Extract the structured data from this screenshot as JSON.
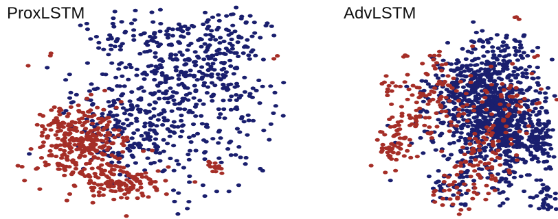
{
  "chart_data": [
    {
      "type": "scatter",
      "title": "ProxLSTM",
      "xlabel": "",
      "ylabel": "",
      "grid": false,
      "axes_visible": false,
      "xlim": [
        0,
        100
      ],
      "ylim": [
        0,
        100
      ],
      "series": [
        {
          "color": "#1a1f6e",
          "clusters": [
            {
              "cx": 58,
              "cy": 58,
              "sx": 18,
              "sy": 22,
              "n": 420
            },
            {
              "cx": 72,
              "cy": 72,
              "sx": 12,
              "sy": 14,
              "n": 160
            },
            {
              "cx": 40,
              "cy": 40,
              "sx": 10,
              "sy": 10,
              "n": 100
            },
            {
              "cx": 37,
              "cy": 82,
              "sx": 4,
              "sy": 3,
              "n": 12
            },
            {
              "cx": 50,
              "cy": 86,
              "sx": 4,
              "sy": 3,
              "n": 14
            },
            {
              "cx": 68,
              "cy": 88,
              "sx": 6,
              "sy": 3,
              "n": 16
            },
            {
              "cx": 82,
              "cy": 87,
              "sx": 4,
              "sy": 4,
              "n": 14
            }
          ]
        },
        {
          "color": "#a52e27",
          "clusters": [
            {
              "cx": 25,
              "cy": 35,
              "sx": 8,
              "sy": 9,
              "n": 300
            },
            {
              "cx": 40,
              "cy": 17,
              "sx": 8,
              "sy": 4,
              "n": 110
            },
            {
              "cx": 74,
              "cy": 24,
              "sx": 2,
              "sy": 1.5,
              "n": 14
            },
            {
              "cx": 16,
              "cy": 45,
              "sx": 2,
              "sy": 4,
              "n": 12
            },
            {
              "cx": 97,
              "cy": 76,
              "sx": 0.5,
              "sy": 0.5,
              "n": 2
            },
            {
              "cx": 15,
              "cy": 78,
              "sx": 1,
              "sy": 1,
              "n": 2
            },
            {
              "cx": 6,
              "cy": 72,
              "sx": 0.5,
              "sy": 0.5,
              "n": 1
            },
            {
              "cx": 41,
              "cy": 1,
              "sx": 0.5,
              "sy": 0.5,
              "n": 1
            }
          ]
        }
      ]
    },
    {
      "type": "scatter",
      "title": "AdvLSTM",
      "xlabel": "",
      "ylabel": "",
      "grid": false,
      "axes_visible": false,
      "xlim": [
        0,
        100
      ],
      "ylim": [
        0,
        100
      ],
      "series": [
        {
          "color": "#1a1f6e",
          "clusters": [
            {
              "cx": 62,
              "cy": 50,
              "sx": 16,
              "sy": 14,
              "n": 620
            },
            {
              "cx": 52,
              "cy": 62,
              "sx": 10,
              "sy": 8,
              "n": 180
            },
            {
              "cx": 75,
              "cy": 42,
              "sx": 10,
              "sy": 8,
              "n": 160
            },
            {
              "cx": 73,
              "cy": 78,
              "sx": 7,
              "sy": 4,
              "n": 40
            },
            {
              "cx": 92,
              "cy": 35,
              "sx": 4,
              "sy": 5,
              "n": 60
            },
            {
              "cx": 93,
              "cy": 10,
              "sx": 4,
              "sy": 4,
              "n": 30
            },
            {
              "cx": 45,
              "cy": 15,
              "sx": 8,
              "sy": 5,
              "n": 40
            },
            {
              "cx": 72,
              "cy": 18,
              "sx": 6,
              "sy": 5,
              "n": 30
            },
            {
              "cx": 65,
              "cy": 85,
              "sx": 6,
              "sy": 3,
              "n": 20
            }
          ]
        },
        {
          "color": "#a52e27",
          "clusters": [
            {
              "cx": 12,
              "cy": 35,
              "sx": 5,
              "sy": 6,
              "n": 60
            },
            {
              "cx": 25,
              "cy": 55,
              "sx": 7,
              "sy": 8,
              "n": 45
            },
            {
              "cx": 40,
              "cy": 55,
              "sx": 6,
              "sy": 6,
              "n": 45
            },
            {
              "cx": 60,
              "cy": 30,
              "sx": 10,
              "sy": 8,
              "n": 70
            },
            {
              "cx": 72,
              "cy": 55,
              "sx": 12,
              "sy": 10,
              "n": 55
            },
            {
              "cx": 40,
              "cy": 12,
              "sx": 6,
              "sy": 4,
              "n": 18
            },
            {
              "cx": 10,
              "cy": 62,
              "sx": 3,
              "sy": 3,
              "n": 10
            },
            {
              "cx": 35,
              "cy": 75,
              "sx": 6,
              "sy": 4,
              "n": 14
            },
            {
              "cx": 50,
              "cy": 12,
              "sx": 6,
              "sy": 4,
              "n": 14
            },
            {
              "cx": 77,
              "cy": 96,
              "sx": 1.5,
              "sy": 0.5,
              "n": 3
            },
            {
              "cx": 20,
              "cy": 78,
              "sx": 2,
              "sy": 1,
              "n": 3
            }
          ]
        }
      ]
    }
  ]
}
